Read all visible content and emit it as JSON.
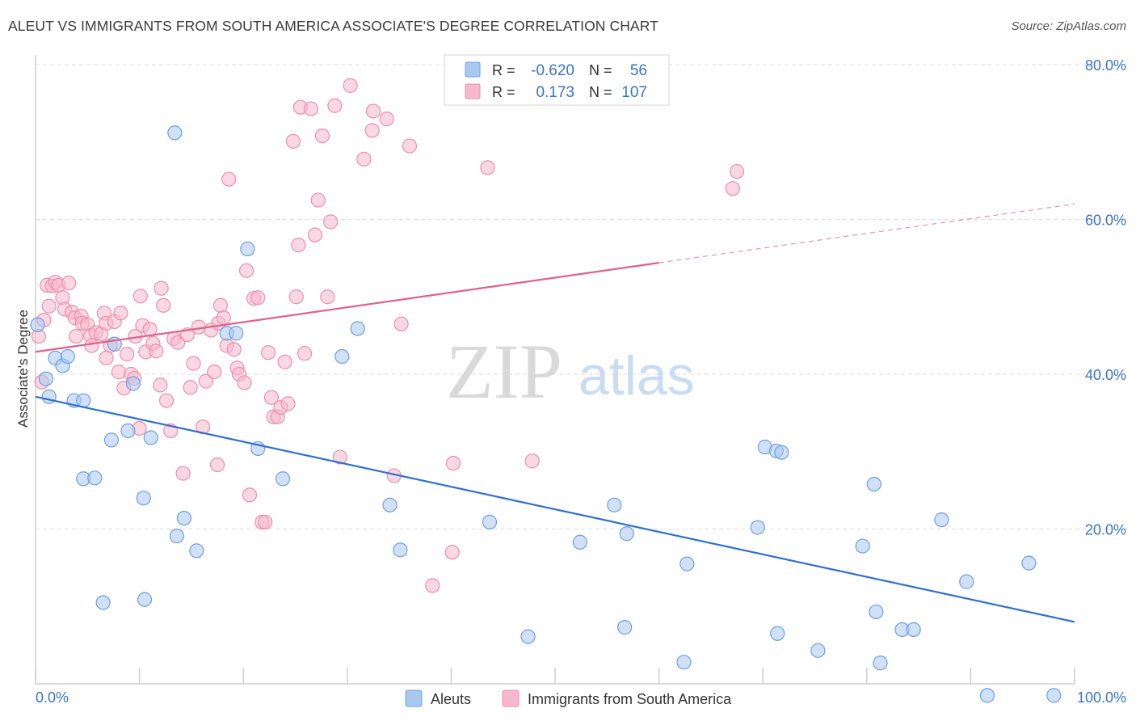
{
  "header": {
    "title": "ALEUT VS IMMIGRANTS FROM SOUTH AMERICA ASSOCIATE'S DEGREE CORRELATION CHART",
    "source": "Source: ZipAtlas.com"
  },
  "legend_box": {
    "rows": [
      {
        "r_label": "R =",
        "r_value": "-0.620",
        "n_label": "N =",
        "n_value": "56",
        "color": "#a9c8f0"
      },
      {
        "r_label": "R =",
        "r_value": "0.173",
        "n_label": "N =",
        "n_value": "107",
        "color": "#f6b8cc"
      }
    ]
  },
  "watermark": {
    "zip": "ZIP",
    "atlas": "atlas"
  },
  "bottom_legend": [
    {
      "label": "Aleuts",
      "color": "#a9c8f0"
    },
    {
      "label": "Immigrants from South America",
      "color": "#f6b8cc"
    }
  ],
  "chart_data": {
    "type": "scatter",
    "ylabel": "Associate's Degree",
    "xlim": [
      0,
      100
    ],
    "ylim": [
      0,
      80
    ],
    "x_tick_labels": [
      "0.0%",
      "100.0%"
    ],
    "y_ticks": [
      20,
      40,
      60,
      80
    ],
    "y_tick_labels": [
      "20.0%",
      "40.0%",
      "60.0%",
      "80.0%"
    ],
    "grid": true,
    "colors": {
      "aleut_fill": "#a9c8f0",
      "aleut_stroke": "#6f9fdc",
      "aleut_line": "#2f6fd0",
      "sa_fill": "#f6b8cc",
      "sa_stroke": "#ec8fab",
      "sa_line": "#e0628c"
    },
    "series": [
      {
        "name": "Aleuts",
        "trend": {
          "x": [
            0,
            100
          ],
          "y": [
            37.1,
            8.0
          ]
        },
        "points": [
          [
            0.2,
            46.4
          ],
          [
            1.0,
            39.4
          ],
          [
            1.3,
            37.1
          ],
          [
            1.9,
            42.1
          ],
          [
            2.6,
            41.1
          ],
          [
            3.1,
            42.3
          ],
          [
            3.7,
            36.6
          ],
          [
            4.6,
            36.6
          ],
          [
            4.6,
            26.5
          ],
          [
            5.7,
            26.6
          ],
          [
            6.5,
            10.5
          ],
          [
            7.3,
            31.5
          ],
          [
            7.6,
            43.9
          ],
          [
            8.9,
            32.7
          ],
          [
            9.4,
            38.8
          ],
          [
            10.4,
            24.0
          ],
          [
            10.5,
            10.9
          ],
          [
            11.1,
            31.8
          ],
          [
            13.4,
            71.2
          ],
          [
            13.6,
            19.1
          ],
          [
            14.3,
            21.4
          ],
          [
            15.5,
            17.2
          ],
          [
            18.4,
            45.3
          ],
          [
            19.3,
            45.3
          ],
          [
            20.4,
            56.2
          ],
          [
            21.4,
            30.4
          ],
          [
            23.8,
            26.5
          ],
          [
            29.5,
            42.3
          ],
          [
            31.0,
            45.9
          ],
          [
            34.1,
            23.1
          ],
          [
            35.1,
            17.3
          ],
          [
            43.7,
            20.9
          ],
          [
            47.4,
            6.1
          ],
          [
            52.4,
            18.3
          ],
          [
            55.7,
            23.1
          ],
          [
            56.7,
            7.3
          ],
          [
            56.9,
            19.4
          ],
          [
            62.7,
            15.5
          ],
          [
            62.4,
            2.8
          ],
          [
            69.5,
            20.2
          ],
          [
            70.2,
            30.6
          ],
          [
            71.3,
            30.1
          ],
          [
            71.8,
            29.9
          ],
          [
            71.4,
            6.5
          ],
          [
            75.3,
            4.3
          ],
          [
            79.6,
            17.8
          ],
          [
            80.7,
            25.8
          ],
          [
            80.9,
            9.3
          ],
          [
            81.3,
            2.7
          ],
          [
            83.4,
            7.0
          ],
          [
            84.5,
            7.0
          ],
          [
            87.2,
            21.2
          ],
          [
            89.6,
            13.2
          ],
          [
            95.6,
            15.6
          ],
          [
            91.6,
            -1.5
          ],
          [
            98.0,
            -1.5
          ]
        ]
      },
      {
        "name": "Immigrants from South America",
        "trend": {
          "x": [
            0,
            60
          ],
          "y": [
            42.9,
            54.4
          ]
        },
        "trend_dashed": {
          "x": [
            60,
            100
          ],
          "y": [
            54.4,
            62.0
          ]
        },
        "points": [
          [
            0.3,
            44.9
          ],
          [
            0.6,
            39.0
          ],
          [
            1.1,
            51.5
          ],
          [
            1.3,
            48.8
          ],
          [
            1.6,
            51.4
          ],
          [
            1.9,
            51.9
          ],
          [
            2.2,
            51.5
          ],
          [
            2.6,
            49.9
          ],
          [
            2.8,
            48.4
          ],
          [
            3.2,
            51.8
          ],
          [
            3.5,
            48.0
          ],
          [
            3.8,
            47.3
          ],
          [
            3.9,
            44.9
          ],
          [
            4.4,
            47.5
          ],
          [
            4.5,
            46.6
          ],
          [
            5.0,
            46.4
          ],
          [
            5.3,
            45.0
          ],
          [
            5.4,
            43.7
          ],
          [
            5.8,
            45.4
          ],
          [
            6.3,
            45.2
          ],
          [
            6.6,
            47.9
          ],
          [
            6.8,
            46.6
          ],
          [
            7.2,
            43.7
          ],
          [
            7.6,
            46.8
          ],
          [
            8.0,
            40.3
          ],
          [
            8.2,
            47.9
          ],
          [
            8.5,
            38.2
          ],
          [
            8.8,
            42.6
          ],
          [
            9.2,
            40.0
          ],
          [
            9.5,
            39.5
          ],
          [
            9.6,
            44.9
          ],
          [
            10.0,
            33.0
          ],
          [
            10.1,
            50.1
          ],
          [
            10.3,
            46.3
          ],
          [
            10.6,
            42.9
          ],
          [
            11.0,
            45.8
          ],
          [
            11.3,
            44.0
          ],
          [
            11.6,
            43.0
          ],
          [
            12.0,
            38.6
          ],
          [
            12.3,
            48.9
          ],
          [
            12.6,
            36.6
          ],
          [
            13.0,
            32.7
          ],
          [
            13.3,
            44.6
          ],
          [
            13.7,
            44.1
          ],
          [
            14.2,
            27.2
          ],
          [
            14.6,
            45.1
          ],
          [
            14.9,
            38.3
          ],
          [
            15.2,
            41.4
          ],
          [
            15.7,
            46.1
          ],
          [
            16.1,
            33.2
          ],
          [
            16.4,
            39.1
          ],
          [
            16.9,
            45.7
          ],
          [
            17.2,
            40.3
          ],
          [
            17.6,
            46.6
          ],
          [
            17.8,
            48.9
          ],
          [
            18.1,
            47.3
          ],
          [
            18.4,
            43.7
          ],
          [
            18.6,
            65.2
          ],
          [
            19.1,
            43.2
          ],
          [
            19.4,
            40.8
          ],
          [
            19.6,
            40.0
          ],
          [
            20.1,
            38.9
          ],
          [
            20.3,
            53.4
          ],
          [
            20.6,
            24.4
          ],
          [
            21.0,
            49.8
          ],
          [
            21.4,
            49.9
          ],
          [
            21.8,
            20.9
          ],
          [
            22.1,
            20.9
          ],
          [
            22.4,
            42.8
          ],
          [
            22.7,
            37.0
          ],
          [
            22.9,
            34.5
          ],
          [
            23.3,
            34.5
          ],
          [
            23.6,
            35.7
          ],
          [
            24.0,
            41.6
          ],
          [
            24.3,
            36.2
          ],
          [
            24.8,
            70.1
          ],
          [
            25.1,
            50.0
          ],
          [
            25.3,
            56.7
          ],
          [
            25.5,
            74.5
          ],
          [
            25.9,
            42.7
          ],
          [
            26.5,
            74.3
          ],
          [
            26.9,
            58.0
          ],
          [
            27.2,
            62.5
          ],
          [
            27.6,
            70.8
          ],
          [
            28.1,
            50.0
          ],
          [
            28.4,
            59.7
          ],
          [
            28.8,
            74.7
          ],
          [
            29.3,
            29.3
          ],
          [
            30.3,
            77.3
          ],
          [
            31.6,
            67.8
          ],
          [
            32.4,
            71.5
          ],
          [
            32.5,
            74.0
          ],
          [
            33.8,
            73.0
          ],
          [
            34.5,
            26.9
          ],
          [
            35.2,
            46.5
          ],
          [
            36.0,
            69.5
          ],
          [
            38.2,
            12.7
          ],
          [
            40.1,
            17.0
          ],
          [
            40.2,
            28.5
          ],
          [
            43.5,
            66.7
          ],
          [
            47.8,
            28.8
          ],
          [
            67.1,
            64.0
          ],
          [
            67.5,
            66.2
          ],
          [
            0.8,
            47.0
          ],
          [
            6.8,
            42.1
          ],
          [
            12.1,
            51.1
          ],
          [
            17.5,
            28.3
          ]
        ]
      }
    ]
  }
}
